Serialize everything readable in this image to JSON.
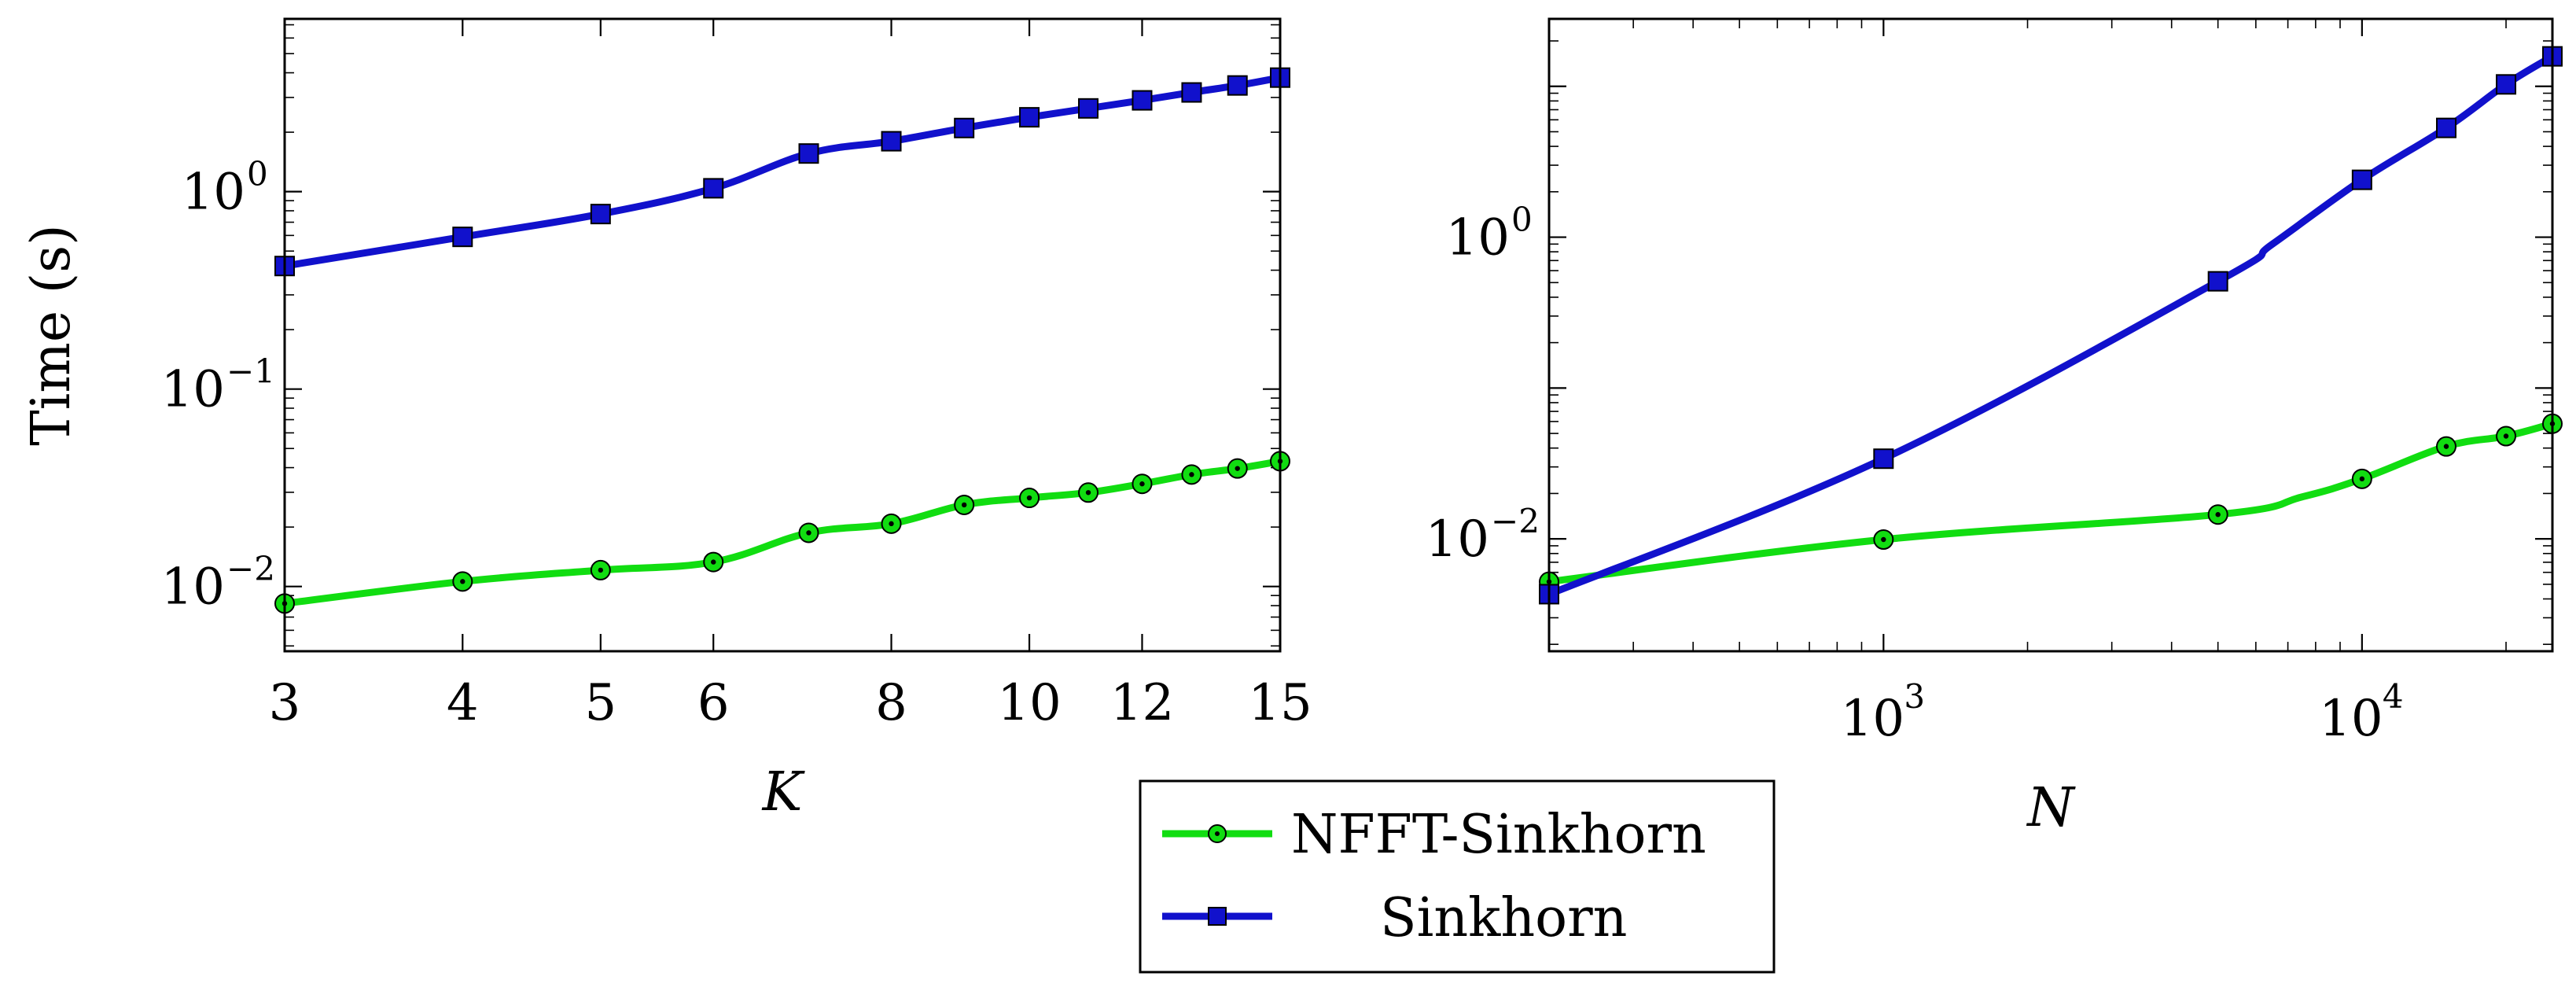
{
  "colors": {
    "nfft": "#11dd11",
    "sinkhorn": "#1111cc",
    "nfft_marker_dot": "#000000",
    "sinkhorn_marker_fill": "#1111cc"
  },
  "legend": {
    "entries": [
      "NFFT-Sinkhorn",
      "Sinkhorn"
    ],
    "placement": "bottom-center"
  },
  "chart_data": [
    {
      "type": "line",
      "title": "",
      "xlabel": "K",
      "ylabel": "Time (s)",
      "xscale": "log",
      "yscale": "log",
      "xlim": [
        3,
        15
      ],
      "ylim": [
        0.0047,
        7.5
      ],
      "x_ticks": [
        3,
        4,
        5,
        6,
        8,
        10,
        12,
        15
      ],
      "x_tick_labels": [
        "3",
        "4",
        "5",
        "6",
        "8",
        "10",
        "12",
        "15"
      ],
      "y_ticks": [
        0.01,
        0.1,
        1
      ],
      "y_tick_labels": [
        {
          "base": "10",
          "exp": "−2"
        },
        {
          "base": "10",
          "exp": "−1"
        },
        {
          "base": "10",
          "exp": "0"
        }
      ],
      "x": [
        3,
        4,
        5,
        6,
        7,
        8,
        9,
        10,
        11,
        12,
        13,
        14,
        15
      ],
      "series": [
        {
          "name": "NFFT-Sinkhorn",
          "marker": "circle",
          "values": [
            0.0082,
            0.0106,
            0.0121,
            0.0133,
            0.0187,
            0.0208,
            0.0259,
            0.0281,
            0.0299,
            0.0331,
            0.0369,
            0.0396,
            0.0431
          ]
        },
        {
          "name": "Sinkhorn",
          "marker": "square",
          "values": [
            0.42,
            0.59,
            0.77,
            1.04,
            1.56,
            1.8,
            2.1,
            2.38,
            2.64,
            2.9,
            3.18,
            3.45,
            3.78
          ]
        }
      ]
    },
    {
      "type": "line",
      "title": "",
      "xlabel": "N",
      "ylabel": "",
      "xscale": "log",
      "yscale": "log",
      "xlim": [
        200,
        25000
      ],
      "ylim": [
        0.0018,
        28
      ],
      "x_ticks": [
        1000,
        10000
      ],
      "x_tick_labels": [
        {
          "base": "10",
          "exp": "3"
        },
        {
          "base": "10",
          "exp": "4"
        }
      ],
      "y_ticks": [
        0.01,
        1
      ],
      "y_tick_labels": [
        {
          "base": "10",
          "exp": "−2"
        },
        {
          "base": "10",
          "exp": "0"
        }
      ],
      "series": [
        {
          "name": "NFFT-Sinkhorn",
          "marker": "circle",
          "x": [
            200,
            1000,
            5000,
            7500,
            10000,
            15000,
            20000,
            25000
          ],
          "values": [
            0.0052,
            0.0099,
            0.0145,
            0.019,
            0.025,
            0.041,
            0.048,
            0.058
          ]
        },
        {
          "name": "Sinkhorn",
          "marker": "square",
          "x": [
            200,
            1000,
            5000,
            6500,
            10000,
            15000,
            20000,
            25000
          ],
          "values": [
            0.0043,
            0.034,
            0.51,
            0.9,
            2.4,
            5.3,
            10.3,
            15.8
          ]
        }
      ]
    }
  ]
}
